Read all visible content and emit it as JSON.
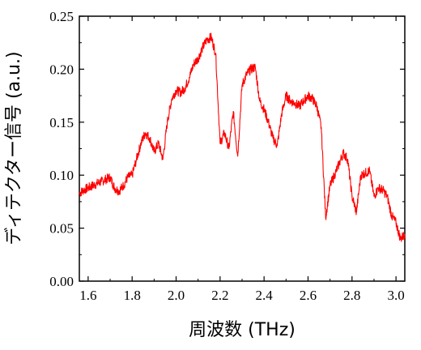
{
  "chart_data": {
    "type": "line",
    "xlabel": "周波数 (THz)",
    "ylabel": "ディテクター信号 (a.u.)",
    "xlim": [
      1.56,
      3.04
    ],
    "ylim": [
      0.0,
      0.25
    ],
    "x_ticks": [
      "1.6",
      "1.8",
      "2.0",
      "2.2",
      "2.4",
      "2.6",
      "2.8",
      "3.0"
    ],
    "y_ticks": [
      "0.00",
      "0.05",
      "0.10",
      "0.15",
      "0.20",
      "0.25"
    ],
    "grid": false,
    "legend": "none",
    "series": [
      {
        "color": "#ff0000",
        "x": [
          1.56,
          1.58,
          1.6,
          1.62,
          1.64,
          1.66,
          1.68,
          1.7,
          1.72,
          1.74,
          1.76,
          1.78,
          1.8,
          1.82,
          1.84,
          1.86,
          1.88,
          1.9,
          1.92,
          1.94,
          1.96,
          1.98,
          2.0,
          2.02,
          2.04,
          2.06,
          2.08,
          2.1,
          2.12,
          2.14,
          2.16,
          2.18,
          2.2,
          2.22,
          2.24,
          2.26,
          2.28,
          2.3,
          2.32,
          2.34,
          2.36,
          2.38,
          2.4,
          2.42,
          2.44,
          2.46,
          2.48,
          2.5,
          2.52,
          2.54,
          2.56,
          2.58,
          2.6,
          2.62,
          2.64,
          2.66,
          2.68,
          2.7,
          2.72,
          2.74,
          2.76,
          2.78,
          2.8,
          2.82,
          2.84,
          2.86,
          2.88,
          2.9,
          2.92,
          2.94,
          2.96,
          2.98,
          3.0,
          3.02,
          3.04
        ],
        "y": [
          0.083,
          0.086,
          0.088,
          0.09,
          0.092,
          0.094,
          0.096,
          0.098,
          0.088,
          0.085,
          0.09,
          0.098,
          0.1,
          0.115,
          0.13,
          0.14,
          0.135,
          0.122,
          0.13,
          0.115,
          0.15,
          0.172,
          0.18,
          0.178,
          0.182,
          0.192,
          0.205,
          0.21,
          0.22,
          0.228,
          0.23,
          0.215,
          0.13,
          0.14,
          0.125,
          0.16,
          0.118,
          0.185,
          0.195,
          0.2,
          0.202,
          0.17,
          0.162,
          0.15,
          0.135,
          0.128,
          0.158,
          0.175,
          0.17,
          0.168,
          0.165,
          0.17,
          0.175,
          0.172,
          0.165,
          0.145,
          0.06,
          0.09,
          0.1,
          0.11,
          0.121,
          0.115,
          0.08,
          0.065,
          0.1,
          0.102,
          0.104,
          0.08,
          0.088,
          0.086,
          0.08,
          0.062,
          0.055,
          0.04,
          0.044
        ]
      }
    ]
  }
}
